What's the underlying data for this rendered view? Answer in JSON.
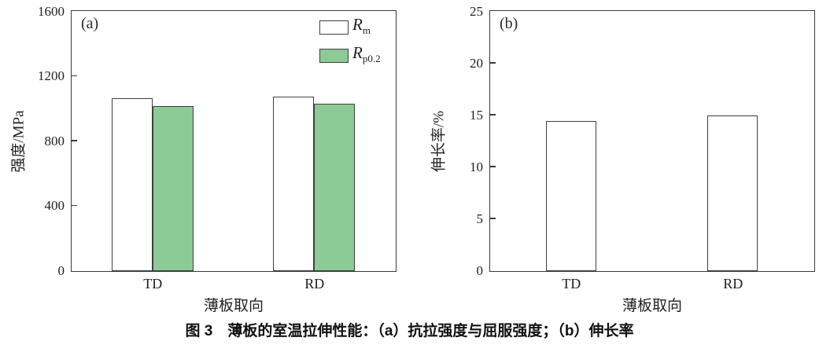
{
  "figure": {
    "caption": "图 3　薄板的室温拉伸性能：（a）抗拉强度与屈服强度；（b）伸长率"
  },
  "chart_data": [
    {
      "type": "bar",
      "panel_label": "(a)",
      "xlabel": "薄板取向",
      "ylabel": "强度/MPa",
      "categories": [
        "TD",
        "RD"
      ],
      "series": [
        {
          "name": "Rm",
          "label_symbol": "R",
          "label_subscript": "m",
          "fill": "#ffffff",
          "values": [
            1065,
            1075
          ]
        },
        {
          "name": "Rp0.2",
          "label_symbol": "R",
          "label_subscript": "p0.2",
          "fill": "#8cca96",
          "values": [
            1020,
            1035
          ]
        }
      ],
      "ylim": [
        0,
        1600
      ],
      "yticks": [
        0,
        400,
        800,
        1200,
        1600
      ],
      "legend_position": "top-right",
      "grid": false
    },
    {
      "type": "bar",
      "panel_label": "(b)",
      "xlabel": "薄板取向",
      "ylabel": "伸长率/%",
      "categories": [
        "TD",
        "RD"
      ],
      "series": [
        {
          "name": "elongation",
          "fill": "#ffffff",
          "values": [
            14.5,
            15.0
          ]
        }
      ],
      "ylim": [
        0,
        25
      ],
      "yticks": [
        0,
        5,
        10,
        15,
        20,
        25
      ],
      "legend_position": "none",
      "grid": false
    }
  ],
  "styles": {
    "axis_color": "#3a3a3a",
    "bar_border_color": "#3f3f3f",
    "rp02_green": "#8cca96",
    "text_color": "#1a1a1a"
  }
}
